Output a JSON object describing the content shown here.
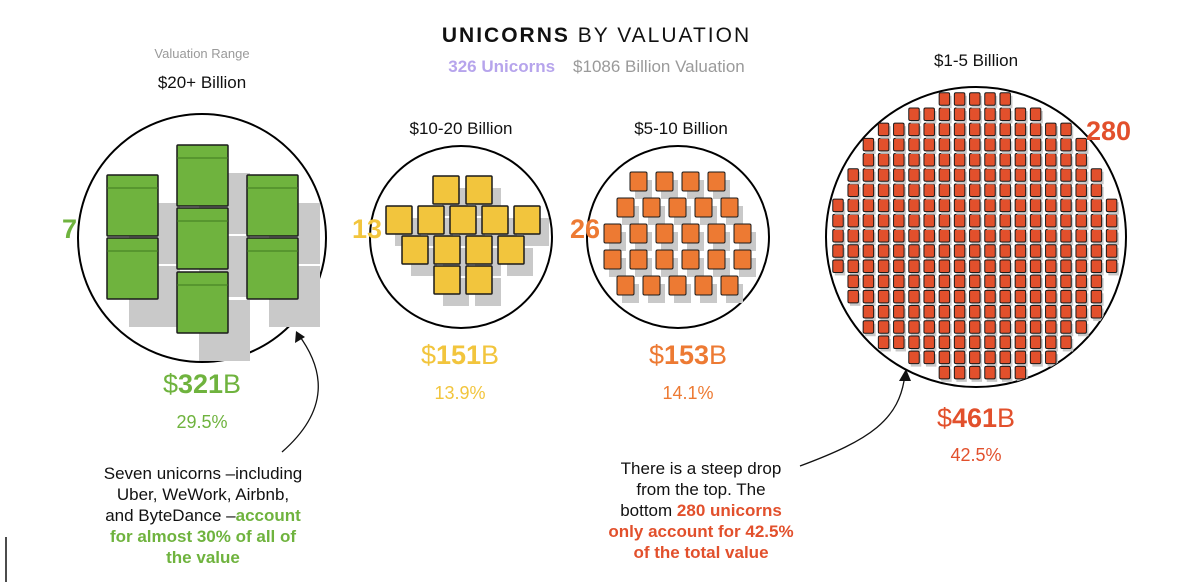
{
  "title": {
    "bold": "UNICORNS",
    "rest": " BY VALUATION"
  },
  "subtitle": {
    "count": "326 Unicorns",
    "valuation": "$1086 Billion Valuation"
  },
  "range_hint": "Valuation Range",
  "colors": {
    "g20": "#6fb33e",
    "g10": "#f2c53d",
    "g5": "#ed7a33",
    "g1": "#e2502c",
    "purple": "#b6a4ec"
  },
  "chart_data": {
    "type": "bubble",
    "title": "UNICORNS BY VALUATION",
    "groups": [
      {
        "range": "$20+ Billion",
        "count": 7,
        "count_label": "7",
        "value_prefix": "$",
        "value_num": "321",
        "value_unit": "B",
        "value_billion": 321,
        "share_label": "29.5%",
        "share": 29.5
      },
      {
        "range": "$10-20 Billion",
        "count": 13,
        "count_label": "13",
        "value_prefix": "$",
        "value_num": "151",
        "value_unit": "B",
        "value_billion": 151,
        "share_label": "13.9%",
        "share": 13.9
      },
      {
        "range": "$5-10 Billion",
        "count": 26,
        "count_label": "26",
        "value_prefix": "$",
        "value_num": "153",
        "value_unit": "B",
        "value_billion": 153,
        "share_label": "14.1%",
        "share": 14.1
      },
      {
        "range": "$1-5 Billion",
        "count": 280,
        "count_label": "280",
        "value_prefix": "$",
        "value_num": "461",
        "value_unit": "B",
        "value_billion": 461,
        "share_label": "42.5%",
        "share": 42.5
      }
    ]
  },
  "notes": {
    "left": {
      "line1": "Seven unicorns –including",
      "line2": "Uber, WeWork, Airbnb,",
      "line3_plain": "and ByteDance –",
      "line3_bold": "account",
      "line4": "for almost 30% of all of",
      "line5": "the value"
    },
    "right": {
      "line1": "There is a steep drop",
      "line2": "from the top. The",
      "line3_plain": "bottom ",
      "line3_bold": "280 unicorns",
      "line4": "only account for 42.5%",
      "line5": "of the total value"
    }
  }
}
